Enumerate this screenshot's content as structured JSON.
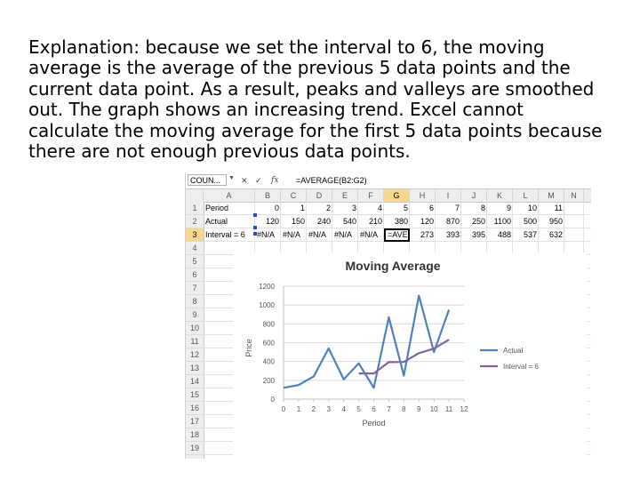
{
  "explanation": {
    "lines": [
      "Explanation: because we set the interval to 6, the moving",
      "average is the average of the previous 5 data points and the",
      "current data point. As a result, peaks and valleys are smoothed",
      "out. The graph shows an increasing trend. Excel cannot",
      "calculate the moving average for the first 5 data points because",
      "there are not enough previous data points."
    ]
  },
  "formula_bar": {
    "name_box": "COUN...",
    "cancel": "✕",
    "enter": "✓",
    "fx": "fx",
    "formula": "=AVERAGE(B2:G2)"
  },
  "columns": [
    "A",
    "B",
    "C",
    "D",
    "E",
    "F",
    "G",
    "H",
    "I",
    "J",
    "K",
    "L",
    "M",
    "N"
  ],
  "selected_column": "G",
  "selected_row": "3",
  "row_numbers": [
    "1",
    "2",
    "3",
    "4",
    "5",
    "6",
    "7",
    "8",
    "9",
    "10",
    "11",
    "12",
    "13",
    "14",
    "15",
    "16",
    "17",
    "18",
    "19"
  ],
  "rows": [
    {
      "label": "Period",
      "values": [
        "0",
        "1",
        "2",
        "3",
        "4",
        "5",
        "6",
        "7",
        "8",
        "9",
        "10",
        "11"
      ]
    },
    {
      "label": "Actual",
      "values": [
        "120",
        "150",
        "240",
        "540",
        "210",
        "380",
        "120",
        "870",
        "250",
        "1100",
        "500",
        "950"
      ]
    },
    {
      "label": "Interval = 6",
      "values": [
        "#N/A",
        "#N/A",
        "#N/A",
        "#N/A",
        "#N/A",
        "=AVER",
        "273",
        "393",
        "395",
        "488",
        "537",
        "632"
      ]
    }
  ],
  "colors": {
    "actual": "#4f81bd",
    "interval": "#8064a2",
    "selection": "#f7d68e",
    "axis": "#bfbfbf",
    "grid": "#d9d9d9"
  },
  "chart_data": {
    "type": "line",
    "title": "Moving Average",
    "xlabel": "Period",
    "ylabel": "Price",
    "x": [
      0,
      1,
      2,
      3,
      4,
      5,
      6,
      7,
      8,
      9,
      10,
      11
    ],
    "xticks": [
      "0",
      "1",
      "2",
      "3",
      "4",
      "5",
      "6",
      "7",
      "8",
      "9",
      "10",
      "11",
      "12"
    ],
    "yticks": [
      "0",
      "200",
      "400",
      "600",
      "800",
      "1000",
      "1200"
    ],
    "xlim": [
      0,
      12
    ],
    "ylim": [
      0,
      1200
    ],
    "grid": true,
    "legend_position": "right",
    "series": [
      {
        "name": "Actual",
        "values": [
          120,
          150,
          240,
          540,
          210,
          380,
          120,
          870,
          250,
          1100,
          500,
          950
        ]
      },
      {
        "name": "Interval = 6",
        "values": [
          null,
          null,
          null,
          null,
          null,
          273,
          273,
          393,
          395,
          488,
          537,
          632
        ]
      }
    ]
  }
}
